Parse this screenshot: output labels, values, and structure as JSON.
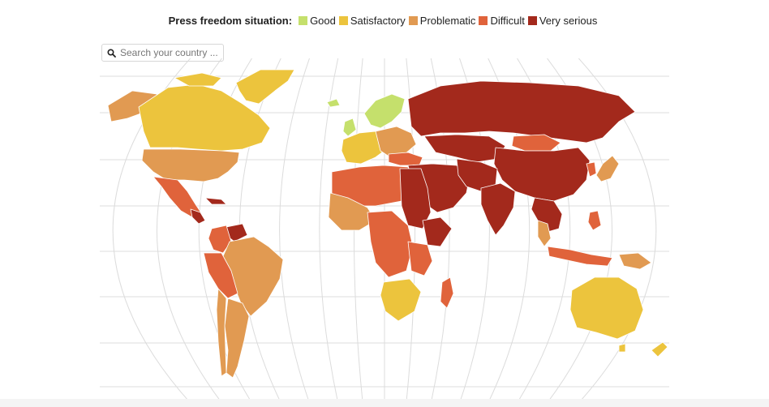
{
  "legend": {
    "title": "Press freedom situation:",
    "categories": [
      {
        "key": "good",
        "label": "Good",
        "color": "#c5e06c"
      },
      {
        "key": "satisfactory",
        "label": "Satisfactory",
        "color": "#ecc43d"
      },
      {
        "key": "problematic",
        "label": "Problematic",
        "color": "#e19a52"
      },
      {
        "key": "difficult",
        "label": "Difficult",
        "color": "#e0633b"
      },
      {
        "key": "very_serious",
        "label": "Very serious",
        "color": "#a3291c"
      }
    ]
  },
  "search": {
    "placeholder": "Search your country ...",
    "icon": "search-icon"
  },
  "map": {
    "projection": "robinson",
    "graticule_color": "#dcdcdc",
    "border_color": "#ffffff"
  }
}
